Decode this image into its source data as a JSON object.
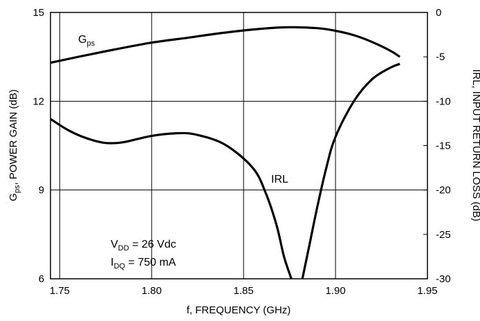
{
  "chart_data": {
    "type": "line",
    "xlabel": "f, FREQUENCY (GHz)",
    "ylabel_left": {
      "main": "G",
      "sub": "ps",
      "rest": ", POWER GAIN (dB)"
    },
    "ylabel_right": "IRL, INPUT RETURN LOSS (dB)",
    "xlim": [
      1.745,
      1.95
    ],
    "ylim_left": [
      6,
      15
    ],
    "ylim_right": [
      -30,
      0
    ],
    "x_ticks": [
      1.75,
      1.8,
      1.85,
      1.9,
      1.95
    ],
    "x_tick_labels": [
      "1.75",
      "1.80",
      "1.85",
      "1.90",
      "1.95"
    ],
    "y_left_ticks": [
      6,
      9,
      12,
      15
    ],
    "y_left_tick_labels": [
      "6",
      "9",
      "12",
      "15"
    ],
    "y_right_ticks": [
      -30,
      -25,
      -20,
      -15,
      -10,
      -5,
      0
    ],
    "y_right_tick_labels": [
      "-30",
      "-25",
      "-20",
      "-15",
      "-10",
      "-5",
      "0"
    ],
    "grid": true,
    "series": [
      {
        "label_main": "G",
        "label_sub": "ps",
        "axis": "left",
        "x": [
          1.745,
          1.76,
          1.78,
          1.8,
          1.82,
          1.84,
          1.86,
          1.875,
          1.89,
          1.9,
          1.91,
          1.92,
          1.93,
          1.935
        ],
        "y": [
          13.3,
          13.5,
          13.75,
          13.98,
          14.15,
          14.32,
          14.45,
          14.5,
          14.47,
          14.38,
          14.23,
          14.0,
          13.7,
          13.5
        ]
      },
      {
        "label": "IRL",
        "axis": "right",
        "x": [
          1.745,
          1.755,
          1.765,
          1.775,
          1.785,
          1.8,
          1.815,
          1.825,
          1.84,
          1.855,
          1.862,
          1.868,
          1.872,
          1.876,
          1.882,
          1.886,
          1.89,
          1.895,
          1.9,
          1.91,
          1.92,
          1.93,
          1.935
        ],
        "y": [
          -12.0,
          -13.3,
          -14.2,
          -14.7,
          -14.6,
          -13.9,
          -13.6,
          -13.8,
          -14.9,
          -17.5,
          -20.3,
          -24.0,
          -27.5,
          -30.0,
          -30.0,
          -26.0,
          -22.0,
          -17.5,
          -14.0,
          -10.0,
          -7.5,
          -6.2,
          -5.8
        ]
      }
    ],
    "annotations": [
      {
        "main": "V",
        "sub": "DD",
        "rest": " = 26 Vdc"
      },
      {
        "main": "I",
        "sub": "DQ",
        "rest": " = 750 mA"
      }
    ]
  }
}
